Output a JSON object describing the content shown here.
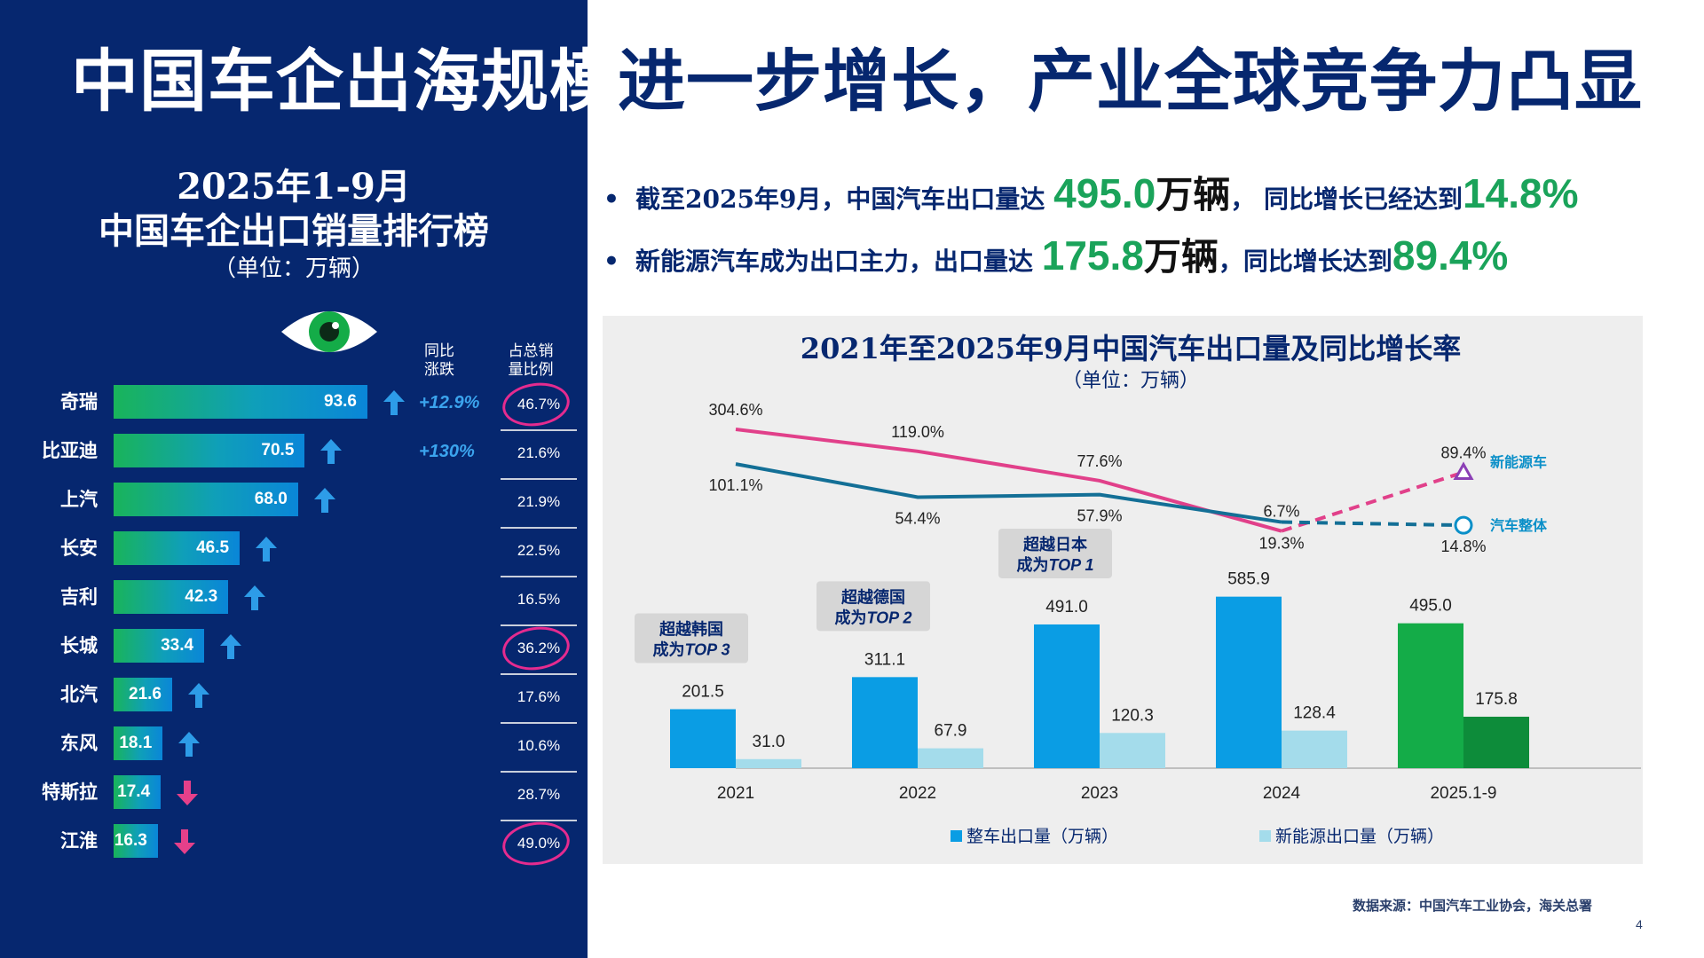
{
  "title": "中国车企出海规模进一步增长，产业全球竞争力凸显",
  "ranking": {
    "title_line1": "2025年1-9月",
    "title_line2": "中国车企出口销量排行榜",
    "unit": "（单位：万辆）",
    "col_yoy": [
      "同比",
      "涨跌"
    ],
    "col_share": [
      "占总销",
      "量比例"
    ],
    "rows": [
      {
        "name": "奇瑞",
        "value": 93.6,
        "trend": "up",
        "yoy": "+12.9%",
        "share": "46.7%",
        "circled": true
      },
      {
        "name": "比亚迪",
        "value": 70.5,
        "trend": "up",
        "yoy": "+130%",
        "share": "21.6%",
        "circled": false
      },
      {
        "name": "上汽",
        "value": 68.0,
        "trend": "up",
        "yoy": "",
        "share": "21.9%",
        "circled": false
      },
      {
        "name": "长安",
        "value": 46.5,
        "trend": "up",
        "yoy": "",
        "share": "22.5%",
        "circled": false
      },
      {
        "name": "吉利",
        "value": 42.3,
        "trend": "up",
        "yoy": "",
        "share": "16.5%",
        "circled": false
      },
      {
        "name": "长城",
        "value": 33.4,
        "trend": "up",
        "yoy": "",
        "share": "36.2%",
        "circled": true
      },
      {
        "name": "北汽",
        "value": 21.6,
        "trend": "up",
        "yoy": "",
        "share": "17.6%",
        "circled": false
      },
      {
        "name": "东风",
        "value": 18.1,
        "trend": "up",
        "yoy": "",
        "share": "10.6%",
        "circled": false
      },
      {
        "name": "特斯拉",
        "value": 17.4,
        "trend": "down",
        "yoy": "",
        "share": "28.7%",
        "circled": false
      },
      {
        "name": "江淮",
        "value": 16.3,
        "trend": "down",
        "yoy": "",
        "share": "49.0%",
        "circled": true
      }
    ]
  },
  "bullets": [
    {
      "pre": "截至2025年9月，中国汽车出口量达 ",
      "num": "495.0",
      "unit": "万辆",
      "mid": "，  同比增长已经达到",
      "pct": "14.8%"
    },
    {
      "pre": "新能源汽车成为出口主力，出口量达 ",
      "num": "175.8",
      "unit": "万辆",
      "mid": "，同比增长达到",
      "pct": "89.4%"
    }
  ],
  "chart_data": {
    "type": "bar",
    "title": "2021年至2025年9月中国汽车出口量及同比增长率",
    "subtitle": "（单位：万辆）",
    "categories": [
      "2021",
      "2022",
      "2023",
      "2024",
      "2025.1-9"
    ],
    "series": [
      {
        "name": "整车出口量（万辆）",
        "values": [
          201.5,
          311.1,
          491.0,
          585.9,
          495.0
        ],
        "labels": [
          "201.5",
          "311.1",
          "491.0",
          "585.9",
          "495.0"
        ]
      },
      {
        "name": "新能源出口量（万辆）",
        "values": [
          31.0,
          67.9,
          120.3,
          128.4,
          175.8
        ],
        "labels": [
          "31.0",
          "67.9",
          "120.3",
          "128.4",
          "175.8"
        ]
      }
    ],
    "growth_lines": [
      {
        "name": "新能源车",
        "values": [
          304.6,
          119.0,
          77.6,
          6.7,
          89.4
        ],
        "labels": [
          "304.6%",
          "119.0%",
          "77.6%",
          "6.7%",
          "89.4%"
        ],
        "color": "#e1408a"
      },
      {
        "name": "汽车整体",
        "values": [
          101.1,
          54.4,
          57.9,
          19.3,
          14.8
        ],
        "labels": [
          "101.1%",
          "54.4%",
          "57.9%",
          "19.3%",
          "14.8%"
        ],
        "color": "#136f96"
      }
    ],
    "annotations": [
      {
        "category": "2021",
        "line1": "超越韩国",
        "line2": "成为",
        "line2_em": "TOP 3"
      },
      {
        "category": "2022",
        "line1": "超越德国",
        "line2": "成为",
        "line2_em": "TOP 2"
      },
      {
        "category": "2023",
        "line1": "超越日本",
        "line2": "成为",
        "line2_em": "TOP 1"
      }
    ],
    "legend_position": "bottom",
    "colors": {
      "total": "#0a9de4",
      "nev": "#a4dceb",
      "total_2025": "#14ac48",
      "nev_2025": "#0d8c3a"
    }
  },
  "source": "数据来源：中国汽车工业协会，海关总署",
  "page_number": "4"
}
